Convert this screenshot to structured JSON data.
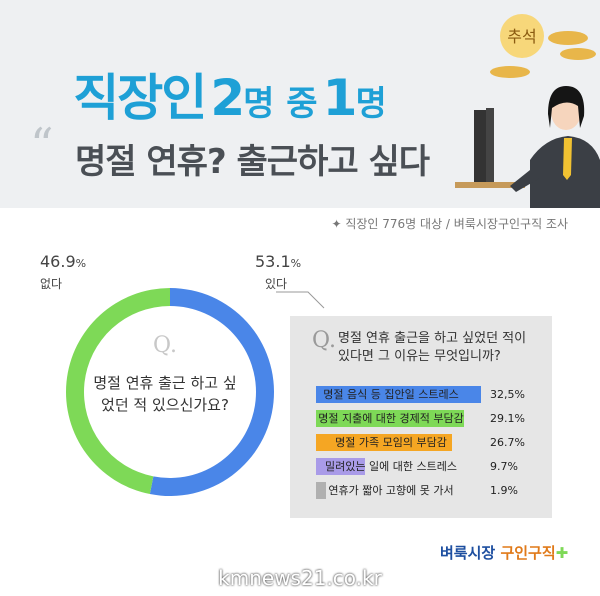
{
  "header": {
    "title_word1": "직장인",
    "title_num1": "2",
    "title_word2": "명 중",
    "title_num2": "1",
    "title_word3": "명",
    "quote_mark": "“",
    "subtitle": "명절 연휴? 출근하고 싶다",
    "badge": "추석"
  },
  "survey_note": "✦ 직장인 776명 대상 / 벼룩시장구인구직 조사",
  "chart_data": [
    {
      "type": "pie",
      "title": "명절 연휴 출근 하고 싶었던 적 있으신가요?",
      "question_mark": "Q.",
      "categories": [
        "있다",
        "없다"
      ],
      "values": [
        53.1,
        46.9
      ],
      "value_labels": [
        "53.1",
        "46.9"
      ],
      "unit": "%",
      "colors": [
        "#4a86e8",
        "#7ed957"
      ]
    },
    {
      "type": "bar",
      "title": "명절 연휴 출근을 하고 싶었던 적이 있다면 그 이유는 무엇입니까?",
      "question_mark": "Q.",
      "categories": [
        "명절 음식 등 집안일 스트레스",
        "명절 지출에 대한 경제적 부담감",
        "명절 가족 모임의 부담감",
        "밀려있는 일에 대한 스트레스",
        "연휴가 짧아 고향에 못 가서"
      ],
      "values": [
        32.5,
        29.1,
        26.7,
        9.7,
        1.9
      ],
      "value_labels": [
        "32,5%",
        "29.1%",
        "26.7%",
        "9.7%",
        "1.9%"
      ],
      "colors": [
        "#4a86e8",
        "#7ed957",
        "#f5a623",
        "#a99be8",
        "#b0b0b0"
      ]
    }
  ],
  "logo": {
    "part1": "벼룩시장",
    "part2": "구인구직"
  },
  "watermark": "kmnews21.co.kr"
}
